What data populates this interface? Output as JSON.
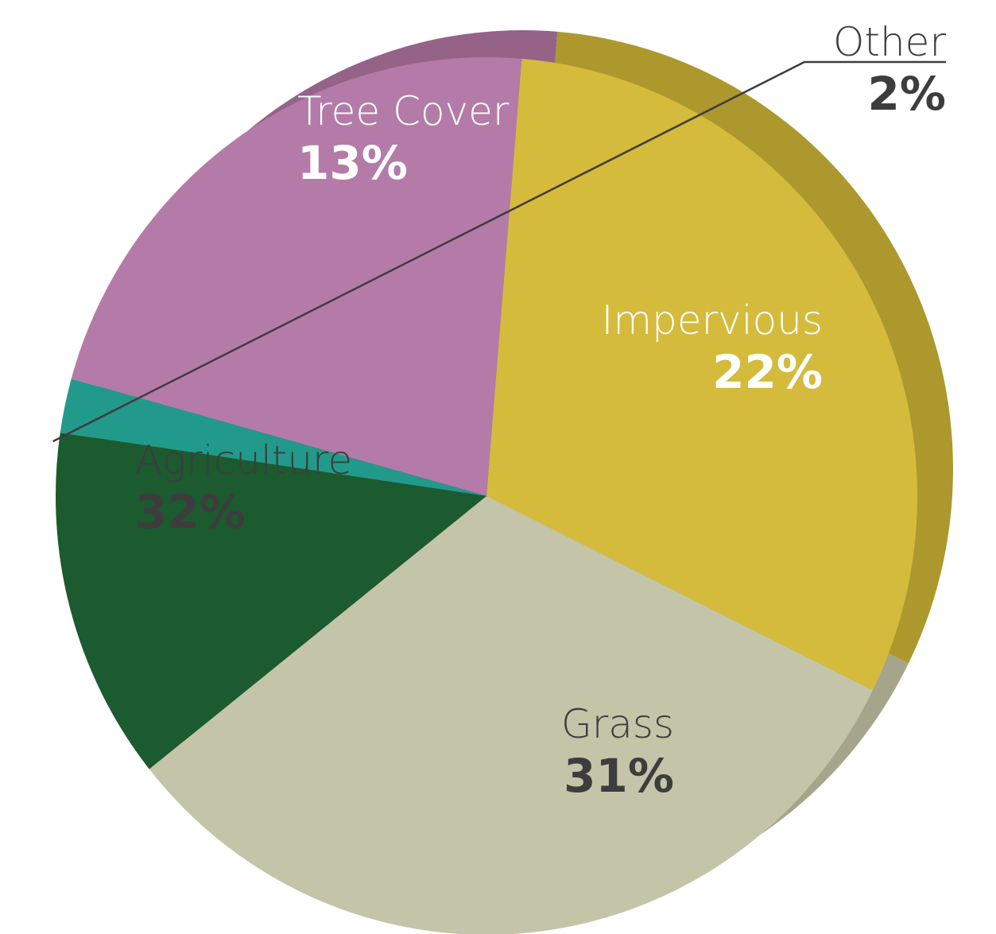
{
  "chart_data": {
    "type": "pie",
    "title": "",
    "slices": [
      {
        "name": "Impervious",
        "value": 22,
        "value_label": "22%",
        "color": "#b47ba9",
        "side_color": "#946387",
        "label_color": "#ffffff"
      },
      {
        "name": "Grass",
        "value": 31,
        "value_label": "31%",
        "color": "#d4bb3c",
        "side_color": "#ad982e",
        "label_color": "#3d3d3d"
      },
      {
        "name": "Agriculture",
        "value": 32,
        "value_label": "32%",
        "color": "#c4c4a9",
        "side_color": "#a5a58c",
        "label_color": "#3d3d3d"
      },
      {
        "name": "Tree Cover",
        "value": 13,
        "value_label": "13%",
        "color": "#1c5a2f",
        "side_color": "#174a27",
        "label_color": "#ffffff"
      },
      {
        "name": "Other",
        "value": 2,
        "value_label": "2%",
        "color": "#229a8b",
        "side_color": "#197a6e",
        "label_color": "#3d3d3d"
      }
    ],
    "legend": "none"
  }
}
